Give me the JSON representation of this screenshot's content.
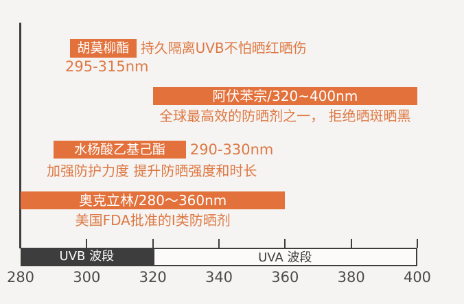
{
  "chart_data": {
    "type": "bar",
    "subtype": "wavelength-range-infographic",
    "title": "",
    "x_unit": "nm",
    "axis": {
      "min": 280,
      "max": 400,
      "ticks": [
        280,
        300,
        320,
        340,
        360,
        380,
        400
      ],
      "grid": false
    },
    "bands": [
      {
        "id": "uvb",
        "label": "UVB 波段",
        "start_nm": 280,
        "end_nm": 320
      },
      {
        "id": "uva",
        "label": "UVA 波段",
        "start_nm": 320,
        "end_nm": 400
      }
    ],
    "series": [
      {
        "name": "胡莫柳酯",
        "start_nm": 295,
        "end_nm": 315,
        "range_label": "295-315nm",
        "description": "持久隔离UVB不怕晒红晒伤",
        "style": "badge"
      },
      {
        "name": "阿伏苯宗",
        "start_nm": 320,
        "end_nm": 400,
        "bar_label": "阿伏苯宗/320~400nm",
        "description": "全球最高效的防晒剂之一， 拒绝晒斑晒黑",
        "style": "bar"
      },
      {
        "name": "水杨酸乙基己酯",
        "start_nm": 290,
        "end_nm": 330,
        "range_label": "290-330nm",
        "description": "加强防护力度 提升防晒强度和时长",
        "style": "badge"
      },
      {
        "name": "奥克立林",
        "start_nm": 280,
        "end_nm": 360,
        "bar_label": "奥克立林/280～360nm",
        "description": "美国FDA批准的I类防晒剂",
        "style": "bar"
      }
    ],
    "colors": {
      "accent_orange": "#e2713b",
      "orange_text": "#de7843",
      "band_uvb_fill": "#3e3d3d",
      "band_uva_fill": "#fcfbfa",
      "axis_text": "#4a4a4a",
      "background": "#f5f4f2"
    }
  }
}
